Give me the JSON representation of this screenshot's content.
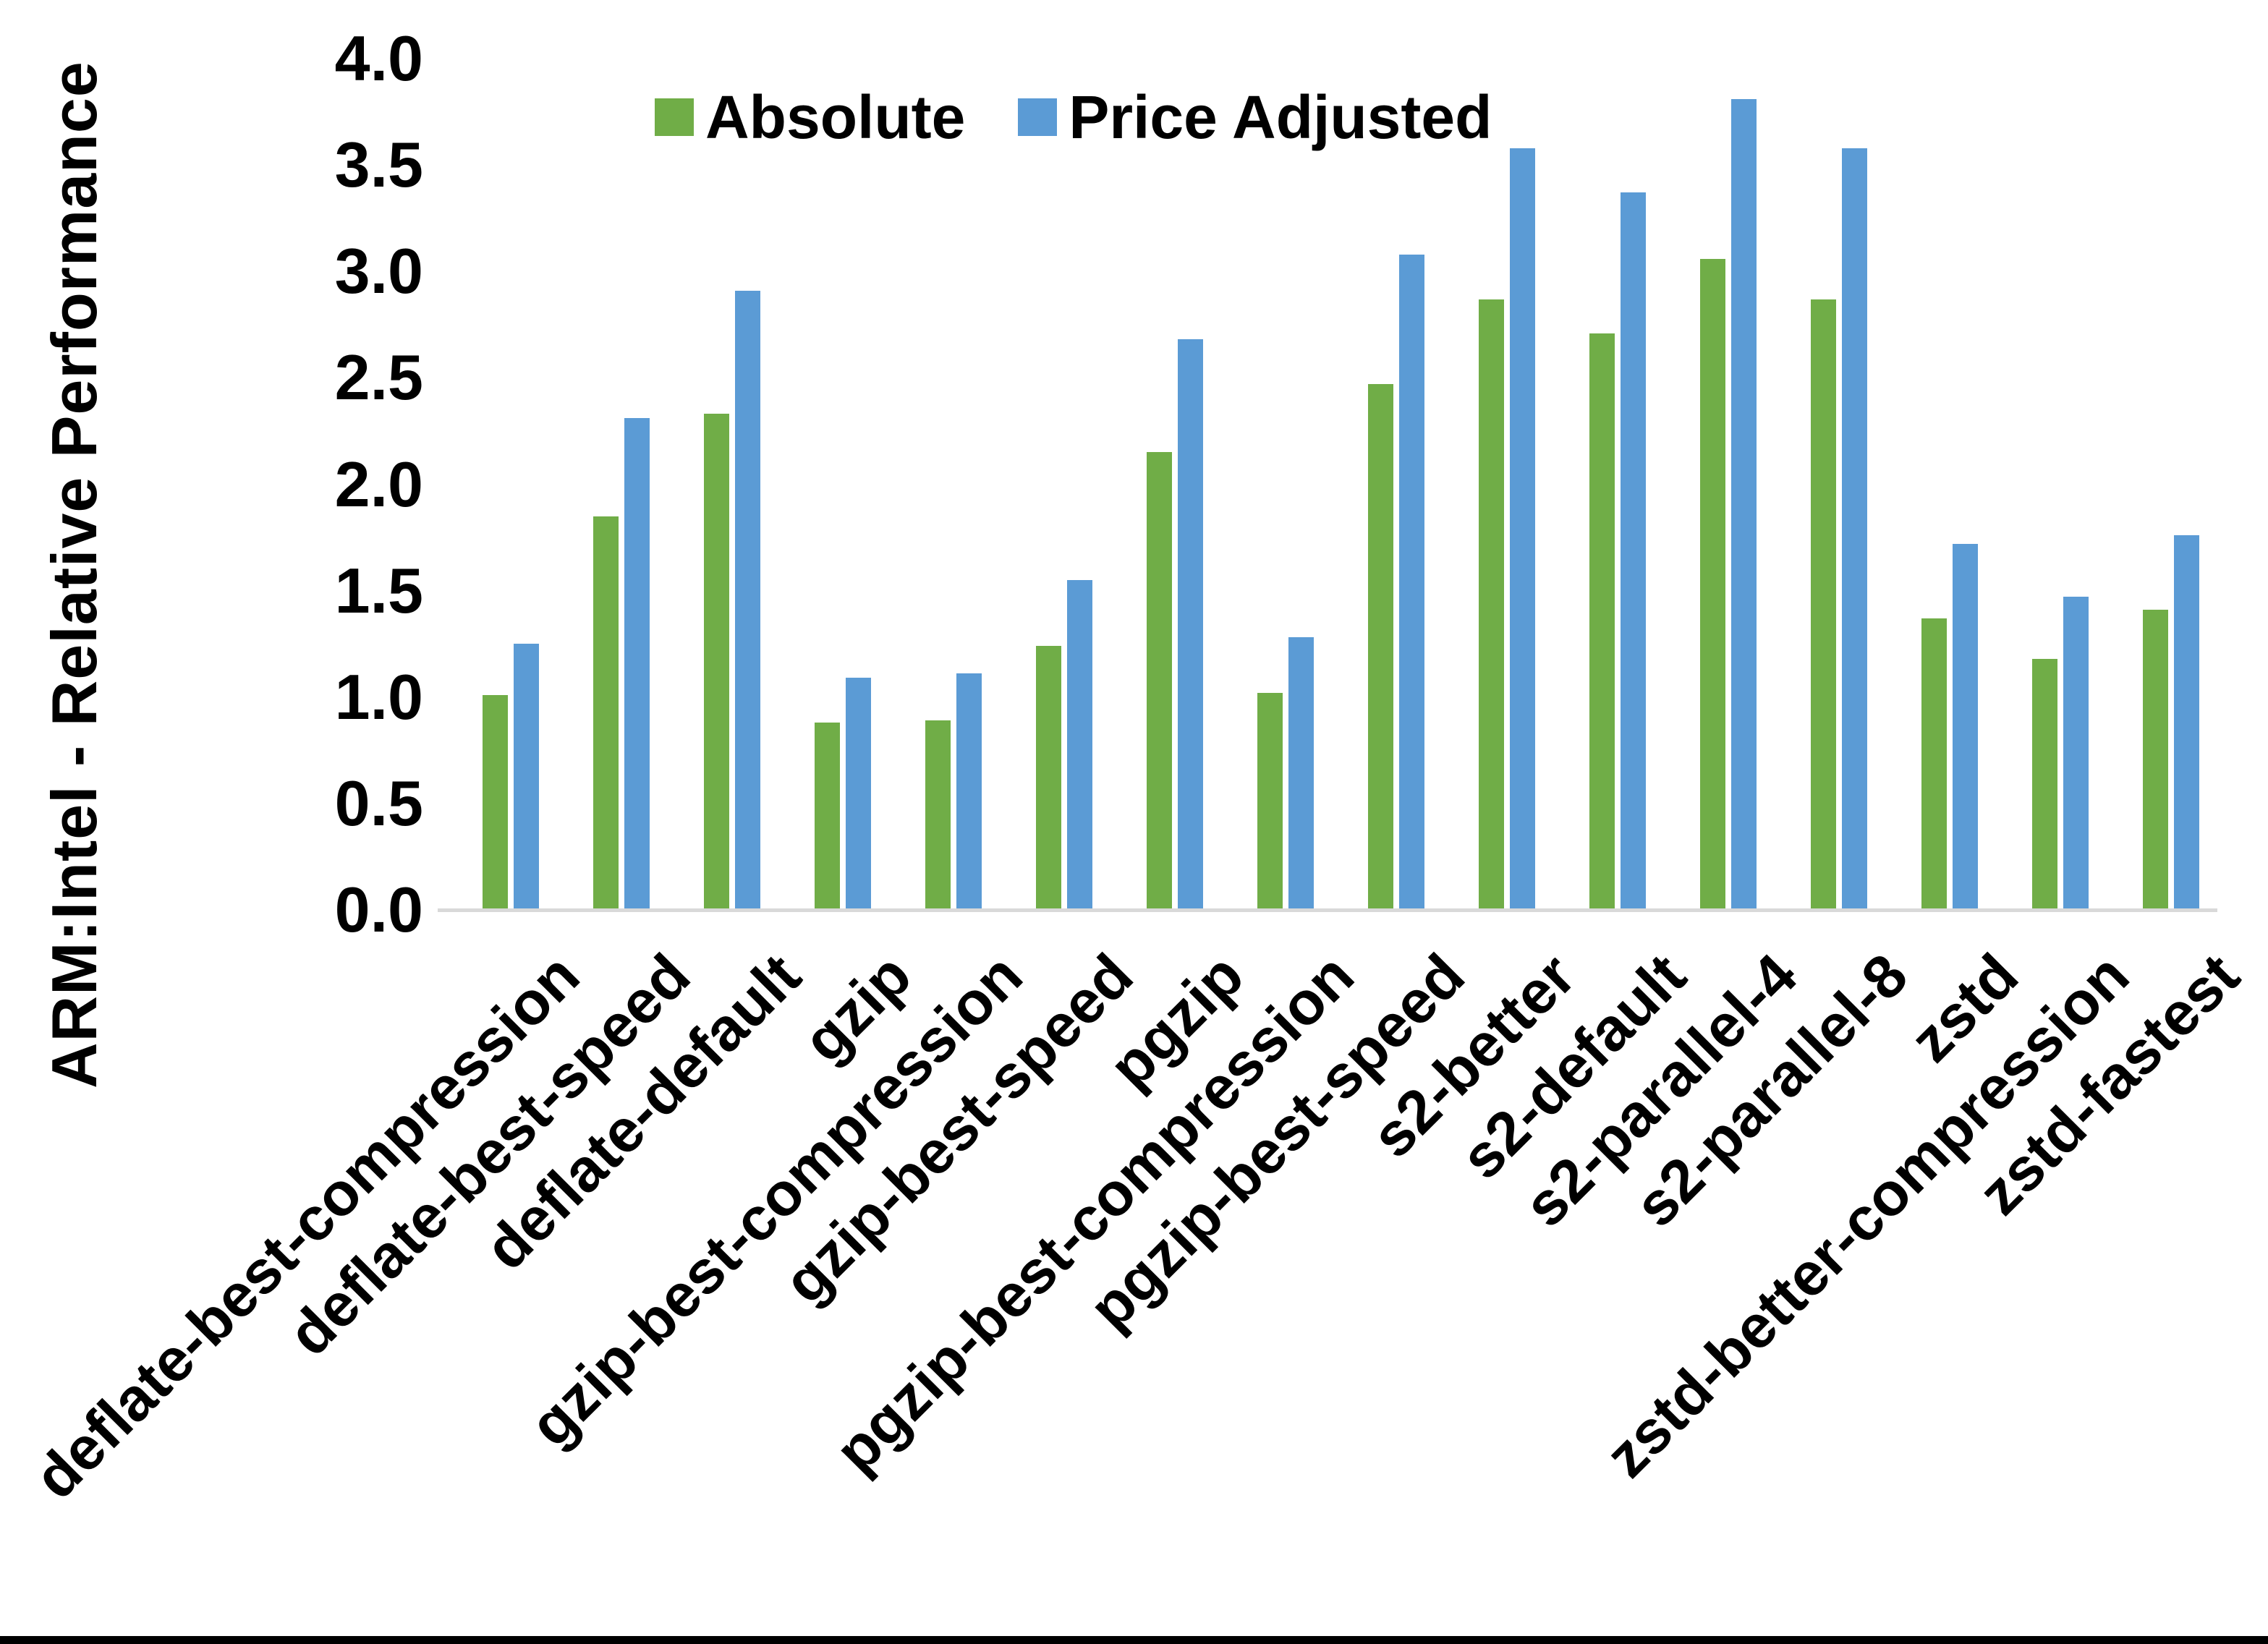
{
  "chart_data": {
    "type": "bar",
    "title": "",
    "xlabel": "",
    "ylabel": "ARM:Intel - Relative Performance",
    "ylim": [
      0.0,
      4.0
    ],
    "ytick_step": 0.5,
    "ytick_labels": [
      "0.0",
      "0.5",
      "1.0",
      "1.5",
      "2.0",
      "2.5",
      "3.0",
      "3.5",
      "4.0"
    ],
    "grid": false,
    "legend_position": "top-center",
    "categories": [
      "deflate-best-compression",
      "deflate-best-speed",
      "deflate-default",
      "gzip",
      "gzip-best-compression",
      "gzip-best-speed",
      "pgzip",
      "pgzip-best-compression",
      "pgzip-best-speed",
      "s2-better",
      "s2-default",
      "s2-parallel-4",
      "s2-parallel-8",
      "zstd",
      "zstd-better-compression",
      "zstd-fastest"
    ],
    "series": [
      {
        "name": "Absolute",
        "color": "#70AD47",
        "values": [
          1.01,
          1.85,
          2.33,
          0.88,
          0.89,
          1.24,
          2.15,
          1.02,
          2.47,
          2.87,
          2.71,
          3.06,
          2.87,
          1.37,
          1.18,
          1.41
        ]
      },
      {
        "name": "Price Adjusted",
        "color": "#5B9BD5",
        "values": [
          1.25,
          2.31,
          2.91,
          1.09,
          1.11,
          1.55,
          2.68,
          1.28,
          3.08,
          3.58,
          3.37,
          3.81,
          3.58,
          1.72,
          1.47,
          1.76
        ]
      }
    ]
  },
  "colors": {
    "background": "#FFFFFF",
    "axis_line": "#D9D9D9",
    "text": "#000000",
    "bottom_bar": "#000000"
  }
}
